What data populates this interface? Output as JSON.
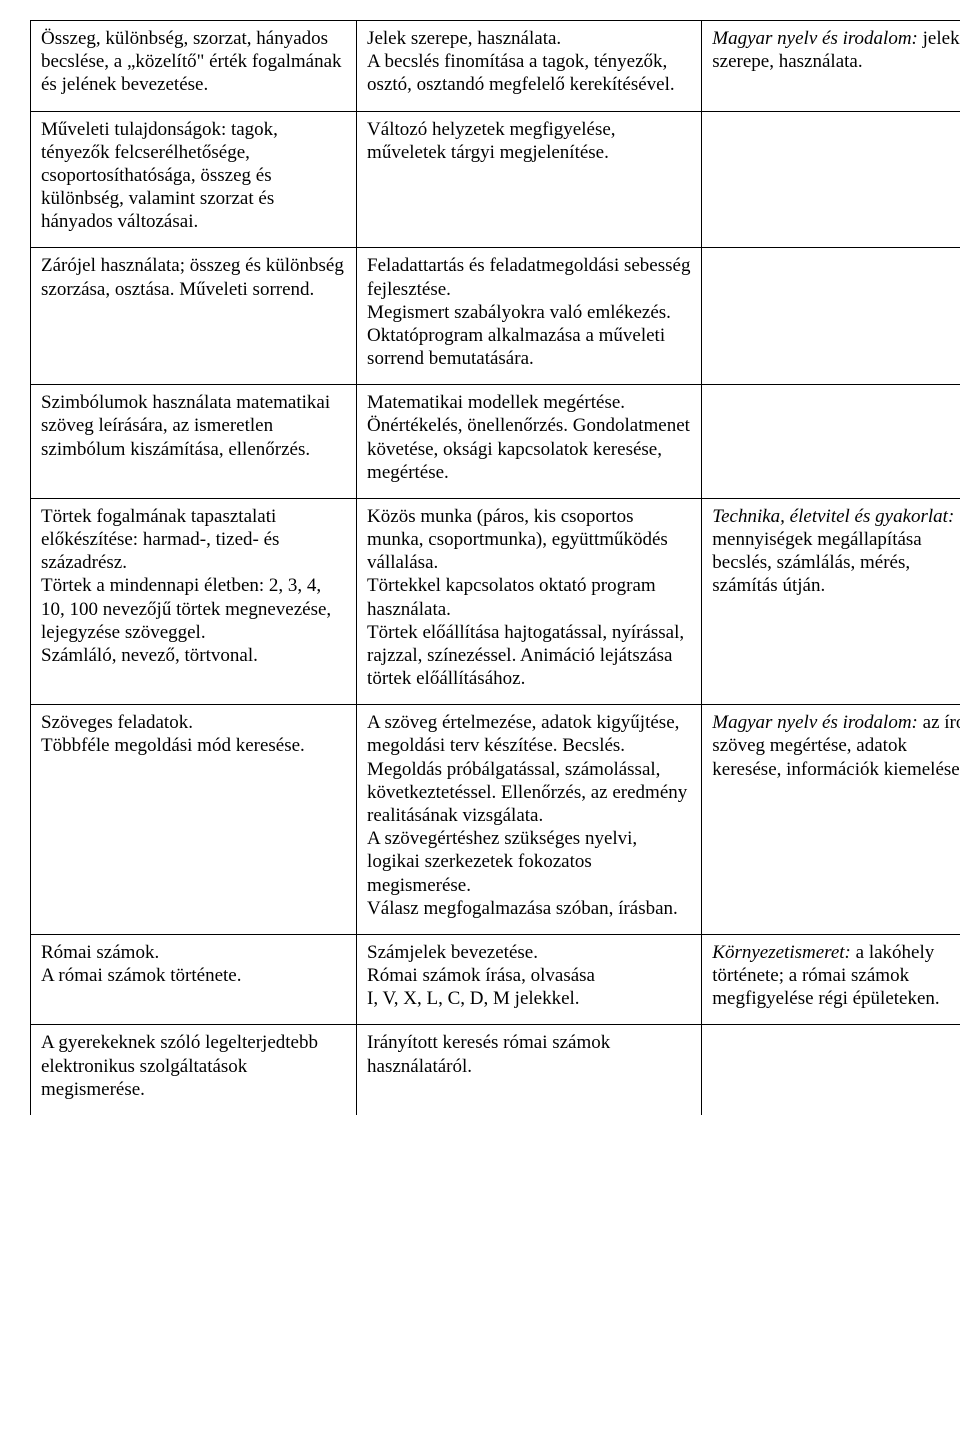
{
  "rows": [
    {
      "c1": "Összeg, különbség, szorzat, hányados becslése, a „közelítő\" érték fogalmának és jelének bevezetése.",
      "c2": "Jelek szerepe, használata.\nA becslés finomítása a tagok, tényezők, osztó, osztandó megfelelő kerekítésével.",
      "c3_italic": "Magyar nyelv és irodalom:",
      "c3_rest": " jelek szerepe, használata."
    },
    {
      "c1": "Műveleti tulajdonságok: tagok, tényezők felcserélhetősége, csoportosíthatósága, összeg és különbség, valamint szorzat és hányados változásai.",
      "c2": "Változó helyzetek megfigyelése, műveletek tárgyi megjelenítése.",
      "c3_italic": "",
      "c3_rest": ""
    },
    {
      "c1": "Zárójel használata; összeg és különbség szorzása, osztása. Műveleti sorrend.",
      "c2": "Feladattartás és feladatmegoldási sebesség fejlesztése.\nMegismert szabályokra való emlékezés.\nOktatóprogram alkalmazása a műveleti sorrend bemutatására.",
      "c3_italic": "",
      "c3_rest": ""
    },
    {
      "c1": "Szimbólumok használata matematikai szöveg leírására, az ismeretlen szimbólum kiszámítása, ellenőrzés.",
      "c2": "Matematikai modellek megértése. Önértékelés, önellenőrzés. Gondolatmenet követése, oksági kapcsolatok keresése, megértése.",
      "c3_italic": "",
      "c3_rest": ""
    },
    {
      "c1": "Törtek fogalmának tapasztalati előkészítése: harmad-, tized- és századrész.\nTörtek a mindennapi életben: 2, 3, 4, 10, 100 nevezőjű törtek megnevezése, lejegyzése szöveggel.\nSzámláló, nevező, törtvonal.",
      "c2": "Közös munka (páros, kis csoportos munka, csoportmunka), együttműködés vállalása.\nTörtekkel kapcsolatos oktató program használata.\nTörtek előállítása hajtogatással, nyírással, rajzzal, színezéssel. Animáció lejátszása törtek előállításához.",
      "c3_italic": "Technika, életvitel és gyakorlat:",
      "c3_rest": " mennyiségek megállapítása becslés, számlálás, mérés, számítás útján."
    },
    {
      "c1": "Szöveges feladatok.\nTöbbféle megoldási mód keresése.",
      "c2": "A szöveg értelmezése, adatok kigyűjtése, megoldási terv készítése. Becslés.\nMegoldás próbálgatással, számolással, következtetéssel. Ellenőrzés, az eredmény realitásának vizsgálata.\nA szövegértéshez szükséges nyelvi, logikai szerkezetek fokozatos megismerése.\nVálasz megfogalmazása szóban, írásban.",
      "c3_italic": "Magyar nyelv és irodalom:",
      "c3_rest": " az írott szöveg megértése, adatok keresése, információk kiemelése."
    },
    {
      "c1": "Római számok.\nA római számok története.",
      "c2": "Számjelek bevezetése.\nRómai számok írása, olvasása\nI, V, X, L, C, D, M jelekkel.",
      "c3_italic": "Környezetismeret:",
      "c3_rest": " a lakóhely története; a római számok megfigyelése régi épületeken."
    },
    {
      "c1": "A gyerekeknek szóló legelterjedtebb elektronikus szolgáltatások megismerése.",
      "c2": "Irányított keresés római számok használatáról.",
      "c3_italic": "",
      "c3_rest": ""
    }
  ]
}
